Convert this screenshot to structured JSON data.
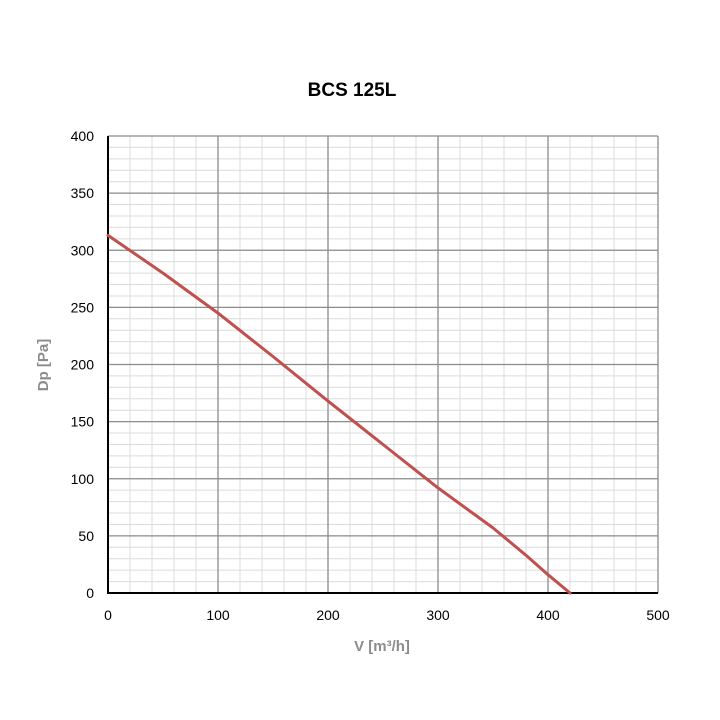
{
  "chart_data": {
    "type": "line",
    "title": "BCS 125L",
    "xlabel": "V [m³/h]",
    "ylabel": "Dp [Pa]",
    "xlim": [
      0,
      500
    ],
    "ylim": [
      0,
      400
    ],
    "x_ticks": [
      0,
      100,
      200,
      300,
      400,
      500
    ],
    "y_ticks": [
      0,
      50,
      100,
      150,
      200,
      250,
      300,
      350,
      400
    ],
    "x_minor_step": 20,
    "y_minor_step": 10,
    "grid": true,
    "legend": "none",
    "colors": {
      "line": "#c0504d",
      "major_grid": "#8c8c8c",
      "minor_grid": "#dcdcdc",
      "axis": "#000000"
    },
    "series": [
      {
        "x": [
          0,
          50,
          100,
          150,
          200,
          250,
          300,
          350,
          380,
          400,
          420
        ],
        "values": [
          313,
          280,
          245,
          207,
          168,
          130,
          92,
          57,
          33,
          16,
          0
        ]
      }
    ]
  }
}
